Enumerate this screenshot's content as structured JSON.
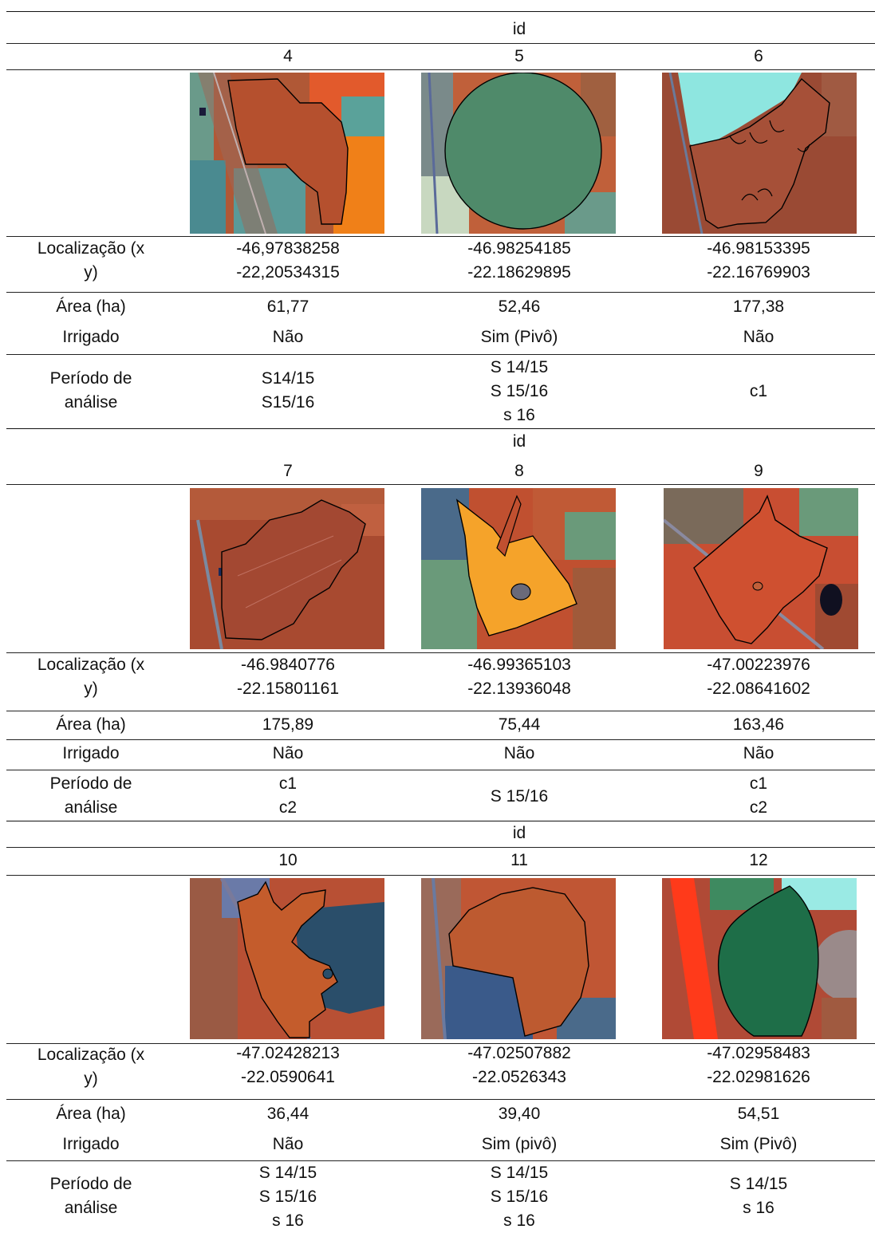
{
  "labels": {
    "id": "id",
    "location": "Localização (x\ny)",
    "area": "Área (ha)",
    "irrigated": "Irrigado",
    "period": "Período de\nanálise"
  },
  "groups": [
    {
      "ids": [
        "4",
        "5",
        "6"
      ],
      "location": [
        "-46,97838258\n-22,20534315",
        "-46.98254185\n-22.18629895",
        "-46.98153395\n-22.16769903"
      ],
      "area": [
        "61,77",
        "52,46",
        "177,38"
      ],
      "irrigated": [
        "Não",
        "Sim (Pivô)",
        "Não"
      ],
      "period": [
        "S14/15\nS15/16",
        "S 14/15\nS 15/16\ns 16",
        "c1"
      ]
    },
    {
      "ids": [
        "7",
        "8",
        "9"
      ],
      "location": [
        "-46.9840776\n-22.15801161",
        "-46.99365103\n-22.13936048",
        "-47.00223976\n-22.08641602"
      ],
      "area": [
        "175,89",
        "75,44",
        "163,46"
      ],
      "irrigated": [
        "Não",
        "Não",
        "Não"
      ],
      "period": [
        "c1\nc2",
        "S 15/16",
        "c1\nc2"
      ]
    },
    {
      "ids": [
        "10",
        "11",
        "12"
      ],
      "location": [
        "-47.02428213\n-22.0590641",
        "-47.02507882\n-22.0526343",
        "-47.02958483\n-22.02981626"
      ],
      "area": [
        "36,44",
        "39,40",
        "54,51"
      ],
      "irrigated": [
        "Não",
        "Sim (pivô)",
        "Sim (Pivô)"
      ],
      "period": [
        "S 14/15\nS 15/16\ns 16",
        "S 14/15\nS 15/16\ns 16",
        "S 14/15\ns 16"
      ]
    }
  ],
  "colors": {
    "soil": "#b5502e",
    "vegetation_orange": "#f07a1a",
    "green_crop": "#4f8a6a",
    "water": "#2a4e6a",
    "cyan": "#8ee6e0",
    "outline": "#000000"
  }
}
